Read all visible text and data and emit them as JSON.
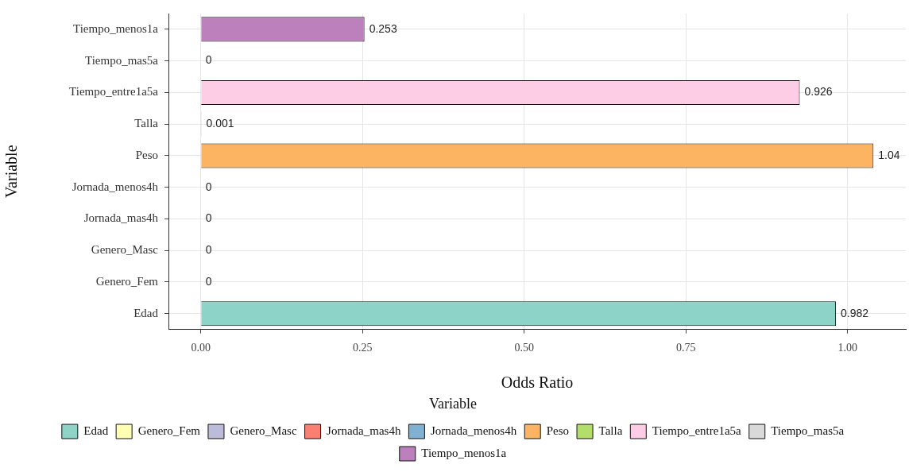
{
  "chart_data": {
    "type": "bar",
    "orientation": "horizontal",
    "xlabel": "Odds Ratio",
    "ylabel": "Variable",
    "legend_title": "Variable",
    "legend": "bottom",
    "grid": true,
    "data_labels": true,
    "categories": [
      "Tiempo_menos1a",
      "Tiempo_mas5a",
      "Tiempo_entre1a5a",
      "Talla",
      "Peso",
      "Jornada_menos4h",
      "Jornada_mas4h",
      "Genero_Masc",
      "Genero_Fem",
      "Edad"
    ],
    "series": [
      {
        "name": "Edad",
        "color": "#8dd3c7",
        "values": [
          null,
          null,
          null,
          null,
          null,
          null,
          null,
          null,
          null,
          0.982
        ]
      },
      {
        "name": "Genero_Fem",
        "color": "#ffffb3",
        "values": [
          null,
          null,
          null,
          null,
          null,
          null,
          null,
          null,
          0,
          null
        ]
      },
      {
        "name": "Genero_Masc",
        "color": "#bebada",
        "values": [
          null,
          null,
          null,
          null,
          null,
          null,
          null,
          0,
          null,
          null
        ]
      },
      {
        "name": "Jornada_mas4h",
        "color": "#fb8072",
        "values": [
          null,
          null,
          null,
          null,
          null,
          null,
          0,
          null,
          null,
          null
        ]
      },
      {
        "name": "Jornada_menos4h",
        "color": "#80b1d3",
        "values": [
          null,
          null,
          null,
          null,
          null,
          0,
          null,
          null,
          null,
          null
        ]
      },
      {
        "name": "Peso",
        "color": "#fdb462",
        "values": [
          null,
          null,
          null,
          null,
          1.04,
          null,
          null,
          null,
          null,
          null
        ]
      },
      {
        "name": "Talla",
        "color": "#b3de69",
        "values": [
          null,
          null,
          null,
          0.001,
          null,
          null,
          null,
          null,
          null,
          null
        ]
      },
      {
        "name": "Tiempo_entre1a5a",
        "color": "#fccde5",
        "values": [
          null,
          null,
          0.926,
          null,
          null,
          null,
          null,
          null,
          null,
          null
        ]
      },
      {
        "name": "Tiempo_mas5a",
        "color": "#d9d9d9",
        "values": [
          null,
          0,
          null,
          null,
          null,
          null,
          null,
          null,
          null,
          null
        ]
      },
      {
        "name": "Tiempo_menos1a",
        "color": "#bc80bd",
        "values": [
          0.253,
          null,
          null,
          null,
          null,
          null,
          null,
          null,
          null,
          null
        ]
      }
    ],
    "xlim": [
      -0.05,
      1.09
    ],
    "xticks": [
      {
        "value": 0,
        "label": "0.00"
      },
      {
        "value": 0.25,
        "label": "0.25"
      },
      {
        "value": 0.5,
        "label": "0.50"
      },
      {
        "value": 0.75,
        "label": "0.75"
      },
      {
        "value": 1,
        "label": "1.00"
      }
    ]
  }
}
